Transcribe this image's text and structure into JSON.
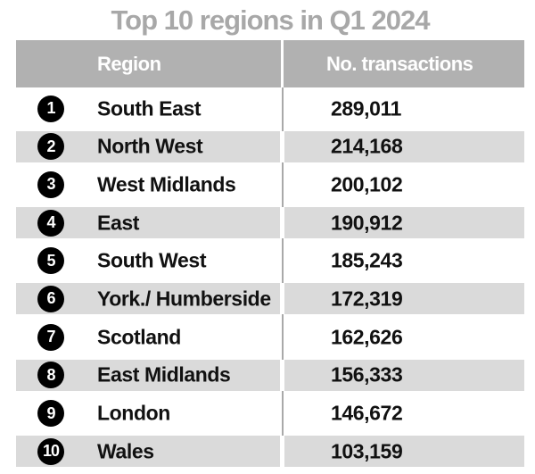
{
  "title": "Top 10 regions in Q1 2024",
  "table": {
    "columns": [
      "Region",
      "No. transactions"
    ],
    "rows": [
      {
        "rank": "1",
        "region": "South East",
        "transactions": "289,011"
      },
      {
        "rank": "2",
        "region": "North West",
        "transactions": "214,168"
      },
      {
        "rank": "3",
        "region": "West Midlands",
        "transactions": "200,102"
      },
      {
        "rank": "4",
        "region": "East",
        "transactions": "190,912"
      },
      {
        "rank": "5",
        "region": "South West",
        "transactions": "185,243"
      },
      {
        "rank": "6",
        "region": "York./ Humberside",
        "transactions": "172,319"
      },
      {
        "rank": "7",
        "region": "Scotland",
        "transactions": "162,626"
      },
      {
        "rank": "8",
        "region": "East Midlands",
        "transactions": "156,333"
      },
      {
        "rank": "9",
        "region": "London",
        "transactions": "146,672"
      },
      {
        "rank": "10",
        "region": "Wales",
        "transactions": "103,159"
      }
    ]
  },
  "colors": {
    "title_color": "#a8a8a8",
    "header_bg": "#b1b1b1",
    "header_text": "#ffffff",
    "alt_row_bg": "#dadada",
    "badge_bg": "#000000",
    "badge_text": "#ffffff",
    "text_color": "#111111",
    "divider_gray": "#a9a9a9"
  },
  "chart_data": {
    "type": "table",
    "title": "Top 10 regions in Q1 2024",
    "columns": [
      "Region",
      "No. transactions"
    ],
    "ranks": [
      1,
      2,
      3,
      4,
      5,
      6,
      7,
      8,
      9,
      10
    ],
    "categories": [
      "South East",
      "North West",
      "West Midlands",
      "East",
      "South West",
      "York./ Humberside",
      "Scotland",
      "East Midlands",
      "London",
      "Wales"
    ],
    "values": [
      289011,
      214168,
      200102,
      190912,
      185243,
      172319,
      162626,
      156333,
      146672,
      103159
    ],
    "layout": {
      "row_striping": true,
      "rank_badges": "black-circles",
      "legend": "none",
      "grid": "off"
    }
  }
}
